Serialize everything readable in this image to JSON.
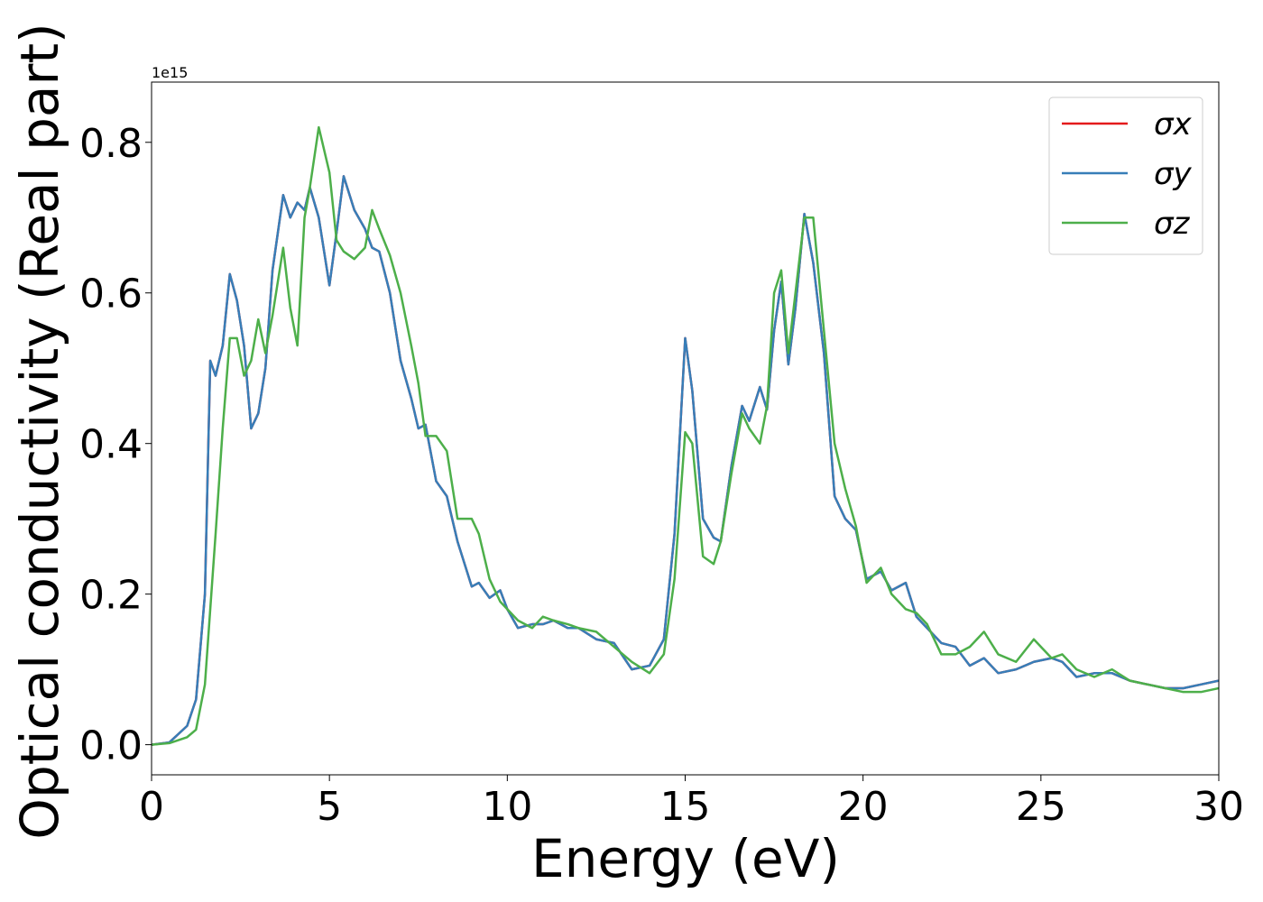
{
  "chart_data": {
    "type": "line",
    "offset_label": "1e15",
    "xlabel": "Energy (eV)",
    "ylabel": "Optical conductivity (Real part)",
    "x": [
      0,
      0.5,
      1,
      1.25,
      1.5,
      1.65,
      1.8,
      2,
      2.2,
      2.4,
      2.6,
      2.8,
      3,
      3.2,
      3.4,
      3.7,
      3.9,
      4.1,
      4.3,
      4.45,
      4.7,
      5,
      5.2,
      5.4,
      5.7,
      6,
      6.2,
      6.4,
      6.7,
      7,
      7.3,
      7.5,
      7.7,
      8,
      8.3,
      8.6,
      9,
      9.2,
      9.5,
      9.8,
      10,
      10.3,
      10.7,
      11,
      11.3,
      11.7,
      12,
      12.5,
      13,
      13.5,
      14,
      14.4,
      14.7,
      15,
      15.2,
      15.5,
      15.8,
      16,
      16.3,
      16.6,
      16.8,
      17.1,
      17.3,
      17.5,
      17.7,
      17.9,
      18.1,
      18.35,
      18.6,
      18.9,
      19.2,
      19.5,
      19.8,
      20.1,
      20.5,
      20.8,
      21.2,
      21.5,
      21.8,
      22.2,
      22.6,
      23,
      23.4,
      23.8,
      24.3,
      24.8,
      25.3,
      25.6,
      26,
      26.5,
      27,
      27.5,
      28,
      28.5,
      29,
      29.5,
      30
    ],
    "series": [
      {
        "name": "σx",
        "color": "#e41a1c",
        "values": [
          0,
          0.003,
          0.025,
          0.06,
          0.2,
          0.51,
          0.49,
          0.53,
          0.625,
          0.59,
          0.53,
          0.42,
          0.44,
          0.5,
          0.63,
          0.73,
          0.7,
          0.72,
          0.71,
          0.74,
          0.7,
          0.61,
          0.68,
          0.755,
          0.71,
          0.685,
          0.66,
          0.655,
          0.6,
          0.51,
          0.46,
          0.42,
          0.425,
          0.35,
          0.33,
          0.27,
          0.21,
          0.215,
          0.195,
          0.205,
          0.18,
          0.155,
          0.16,
          0.16,
          0.165,
          0.155,
          0.155,
          0.14,
          0.135,
          0.1,
          0.105,
          0.14,
          0.28,
          0.54,
          0.47,
          0.3,
          0.275,
          0.27,
          0.37,
          0.45,
          0.43,
          0.475,
          0.445,
          0.55,
          0.615,
          0.505,
          0.58,
          0.705,
          0.64,
          0.52,
          0.33,
          0.3,
          0.285,
          0.22,
          0.23,
          0.205,
          0.215,
          0.17,
          0.155,
          0.135,
          0.13,
          0.105,
          0.115,
          0.095,
          0.1,
          0.11,
          0.115,
          0.11,
          0.09,
          0.095,
          0.095,
          0.085,
          0.08,
          0.075,
          0.075,
          0.08,
          0.085
        ]
      },
      {
        "name": "σy",
        "color": "#377eb8",
        "values": [
          0,
          0.003,
          0.025,
          0.06,
          0.2,
          0.51,
          0.49,
          0.53,
          0.625,
          0.59,
          0.53,
          0.42,
          0.44,
          0.5,
          0.63,
          0.73,
          0.7,
          0.72,
          0.71,
          0.74,
          0.7,
          0.61,
          0.68,
          0.755,
          0.71,
          0.685,
          0.66,
          0.655,
          0.6,
          0.51,
          0.46,
          0.42,
          0.425,
          0.35,
          0.33,
          0.27,
          0.21,
          0.215,
          0.195,
          0.205,
          0.18,
          0.155,
          0.16,
          0.16,
          0.165,
          0.155,
          0.155,
          0.14,
          0.135,
          0.1,
          0.105,
          0.14,
          0.28,
          0.54,
          0.47,
          0.3,
          0.275,
          0.27,
          0.37,
          0.45,
          0.43,
          0.475,
          0.445,
          0.55,
          0.615,
          0.505,
          0.58,
          0.705,
          0.64,
          0.52,
          0.33,
          0.3,
          0.285,
          0.22,
          0.23,
          0.205,
          0.215,
          0.17,
          0.155,
          0.135,
          0.13,
          0.105,
          0.115,
          0.095,
          0.1,
          0.11,
          0.115,
          0.11,
          0.09,
          0.095,
          0.095,
          0.085,
          0.08,
          0.075,
          0.075,
          0.08,
          0.085
        ]
      },
      {
        "name": "σz",
        "color": "#4daf4a",
        "values": [
          0,
          0.002,
          0.01,
          0.02,
          0.08,
          0.18,
          0.28,
          0.42,
          0.54,
          0.54,
          0.49,
          0.51,
          0.565,
          0.52,
          0.57,
          0.66,
          0.58,
          0.53,
          0.7,
          0.74,
          0.82,
          0.76,
          0.67,
          0.655,
          0.645,
          0.66,
          0.71,
          0.685,
          0.65,
          0.6,
          0.53,
          0.48,
          0.41,
          0.41,
          0.39,
          0.3,
          0.3,
          0.28,
          0.22,
          0.19,
          0.18,
          0.165,
          0.155,
          0.17,
          0.165,
          0.16,
          0.155,
          0.15,
          0.13,
          0.11,
          0.095,
          0.12,
          0.22,
          0.415,
          0.4,
          0.25,
          0.24,
          0.27,
          0.36,
          0.44,
          0.42,
          0.4,
          0.45,
          0.6,
          0.63,
          0.52,
          0.6,
          0.7,
          0.7,
          0.55,
          0.4,
          0.34,
          0.29,
          0.215,
          0.235,
          0.2,
          0.18,
          0.175,
          0.16,
          0.12,
          0.12,
          0.13,
          0.15,
          0.12,
          0.11,
          0.14,
          0.115,
          0.12,
          0.1,
          0.09,
          0.1,
          0.085,
          0.08,
          0.075,
          0.07,
          0.07,
          0.075
        ]
      }
    ],
    "xlim": [
      0,
      30
    ],
    "ylim": [
      -0.04,
      0.88
    ],
    "xticks": [
      0,
      5,
      10,
      15,
      20,
      25,
      30
    ],
    "yticks": [
      {
        "value": 0,
        "label": "0.0"
      },
      0.2,
      0.4,
      0.6,
      0.8
    ],
    "legend": "upper right"
  }
}
